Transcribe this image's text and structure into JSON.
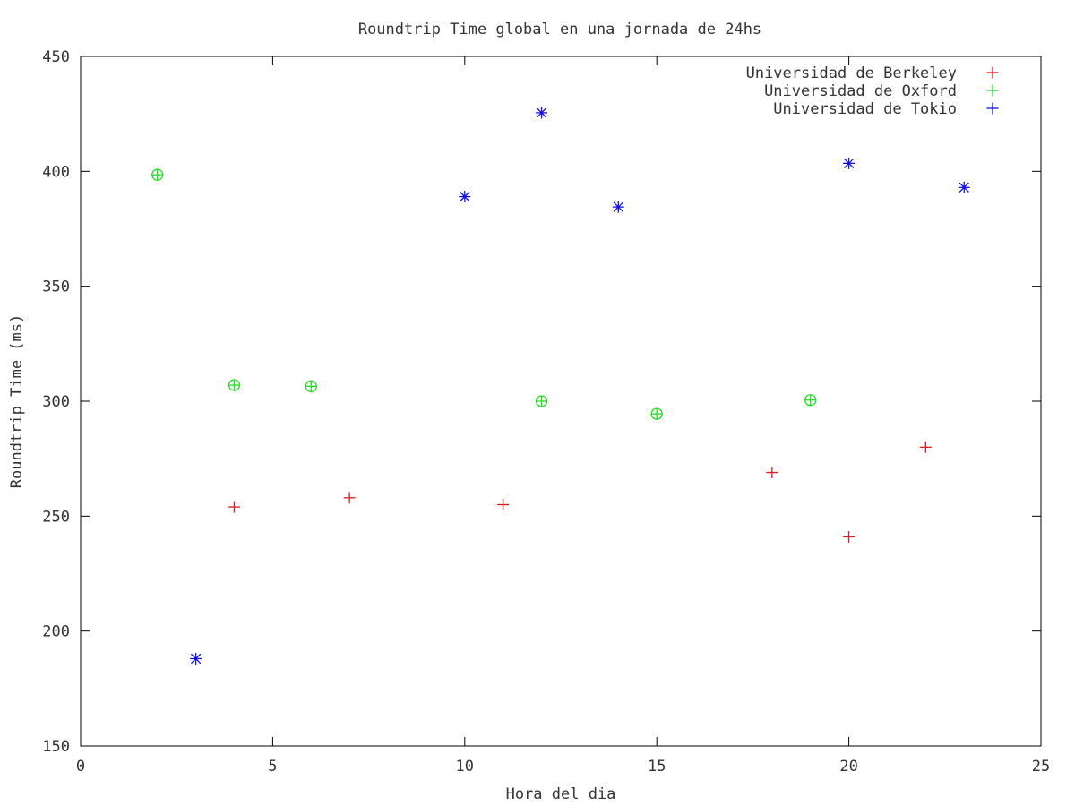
{
  "chart_data": {
    "type": "scatter",
    "title": "Roundtrip Time global en una jornada de 24hs",
    "xlabel": "Hora del dia",
    "ylabel": "Roundtrip Time (ms)",
    "xlim": [
      0,
      25
    ],
    "ylim": [
      150,
      450
    ],
    "xticks": [
      0,
      5,
      10,
      15,
      20,
      25
    ],
    "yticks": [
      150,
      200,
      250,
      300,
      350,
      400,
      450
    ],
    "grid": false,
    "legend_position": "top-right",
    "series": [
      {
        "name": "Universidad de Berkeley",
        "color": "#e31a1c",
        "marker": "plus",
        "points": [
          [
            4,
            254
          ],
          [
            7,
            258
          ],
          [
            11,
            255
          ],
          [
            18,
            269
          ],
          [
            20,
            241
          ],
          [
            22,
            280
          ]
        ]
      },
      {
        "name": "Universidad de Oxford",
        "color": "#22dd22",
        "marker": "circle-plus",
        "points": [
          [
            2,
            398.5
          ],
          [
            4,
            307
          ],
          [
            6,
            306.5
          ],
          [
            12,
            300
          ],
          [
            15,
            294.5
          ],
          [
            19,
            300.5
          ]
        ]
      },
      {
        "name": "Universidad de Tokio",
        "color": "#1010e0",
        "marker": "star",
        "points": [
          [
            3,
            188
          ],
          [
            10,
            389
          ],
          [
            12,
            425.5
          ],
          [
            14,
            384.5
          ],
          [
            20,
            403.5
          ],
          [
            23,
            393
          ]
        ]
      }
    ]
  }
}
